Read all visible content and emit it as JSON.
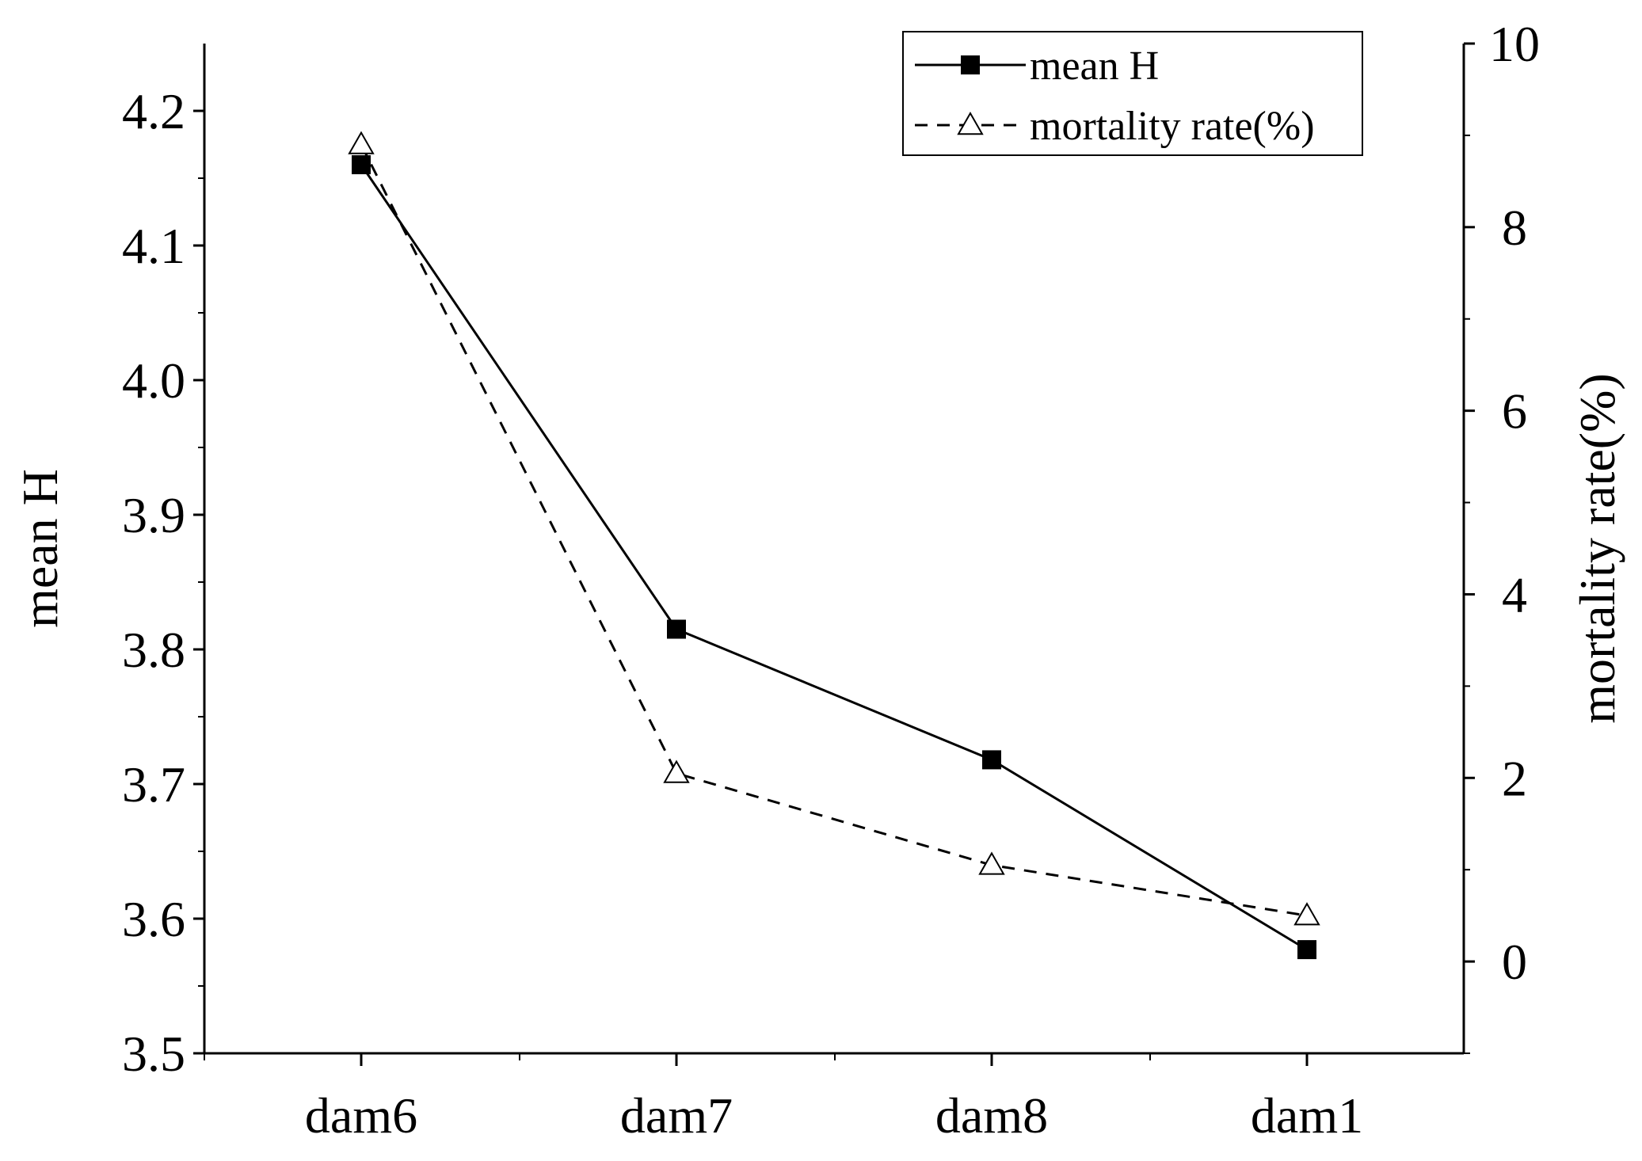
{
  "chart_data": {
    "type": "line",
    "categories": [
      "dam6",
      "dam7",
      "dam8",
      "dam1"
    ],
    "y_left": {
      "label": "mean H",
      "range": [
        3.5,
        4.25
      ],
      "ticks": [
        "3.5",
        "3.6",
        "3.7",
        "3.8",
        "3.9",
        "4.0",
        "4.1",
        "4.2"
      ]
    },
    "y_right": {
      "label": "mortality rate(%)",
      "range": [
        -1,
        10
      ],
      "ticks": [
        "0",
        "2",
        "4",
        "6",
        "8",
        "10"
      ]
    },
    "series": [
      {
        "name": "mean H",
        "axis": "left",
        "style": "solid",
        "marker": "filled-square",
        "values": [
          4.16,
          3.815,
          3.718,
          3.577
        ]
      },
      {
        "name": "mortality rate(%)",
        "axis": "right",
        "style": "dashed",
        "marker": "open-triangle",
        "values": [
          8.9,
          2.05,
          1.05,
          0.5
        ]
      }
    ],
    "legend": {
      "position": "top-right"
    },
    "grid": false,
    "colors": {
      "line": "#000000",
      "background": "#ffffff"
    }
  }
}
